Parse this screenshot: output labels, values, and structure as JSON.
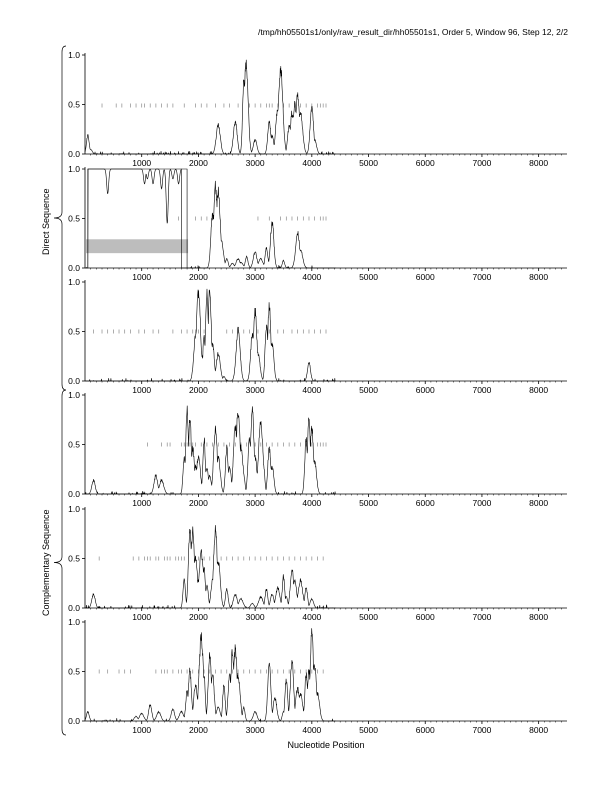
{
  "header": {
    "title": "/tmp/hh05501s1/only/raw_result_dir/hh05501s1, Order 5, Window 96, Step 12, 2/2"
  },
  "groups": {
    "direct_label": "Direct Sequence",
    "complementary_label": "Complementary Sequence"
  },
  "x_axis_label": "Nucleotide Position",
  "colors": {
    "line": "#000000",
    "tick": "#8a8a8a",
    "box": "#bdbdbd"
  },
  "chart_data": [
    {
      "type": "line",
      "group": "direct",
      "xlim": [
        0,
        8500
      ],
      "ylim": [
        0,
        1
      ],
      "x_ticks": [
        "1000",
        "2000",
        "3000",
        "4000",
        "5000",
        "6000",
        "7000",
        "8000"
      ],
      "y_ticks": [
        "0.0",
        "0.5",
        "1.0"
      ],
      "marker_y": 0.49,
      "marker_x": [
        300,
        550,
        650,
        800,
        900,
        1000,
        1050,
        1150,
        1250,
        1350,
        1450,
        1550,
        1750,
        1950,
        2050,
        2150,
        2300,
        2450,
        2550,
        2700,
        2900,
        3000,
        3100,
        3200,
        3250,
        3300,
        3400,
        3500,
        3600,
        3700,
        3800,
        3900,
        4000,
        4100,
        4150,
        4200,
        4250
      ],
      "peaks": [
        [
          50,
          0.2
        ],
        [
          100,
          0.05
        ],
        [
          2350,
          0.32
        ],
        [
          2650,
          0.35
        ],
        [
          2800,
          0.8
        ],
        [
          2840,
          0.97
        ],
        [
          2870,
          0.6
        ],
        [
          3000,
          0.15
        ],
        [
          3250,
          0.35
        ],
        [
          3300,
          0.2
        ],
        [
          3400,
          0.5
        ],
        [
          3450,
          0.93
        ],
        [
          3480,
          0.5
        ],
        [
          3600,
          0.3
        ],
        [
          3650,
          0.45
        ],
        [
          3700,
          0.55
        ],
        [
          3750,
          0.65
        ],
        [
          3800,
          0.45
        ],
        [
          3850,
          0.1
        ],
        [
          4000,
          0.5
        ],
        [
          4050,
          0.15
        ]
      ]
    },
    {
      "type": "line",
      "group": "direct",
      "xlim": [
        0,
        8500
      ],
      "ylim": [
        0,
        1
      ],
      "x_ticks": [
        "1000",
        "2000",
        "3000",
        "4000",
        "5000",
        "6000",
        "7000",
        "8000"
      ],
      "y_ticks": [
        "0.0",
        "0.5",
        "1.0"
      ],
      "marker_y": 0.5,
      "marker_x": [
        1650,
        1950,
        2050,
        2150,
        2250,
        3050,
        3250,
        3450,
        3550,
        3650,
        3750,
        3850,
        3950,
        4050,
        4150,
        4200,
        4250
      ],
      "plateau": {
        "x_range": [
          50,
          1700
        ],
        "value": 1.0,
        "dips": [
          [
            400,
            0.75
          ],
          [
            1050,
            0.85
          ],
          [
            1100,
            0.9
          ],
          [
            1200,
            0.85
          ],
          [
            1350,
            0.8
          ],
          [
            1450,
            0.45
          ],
          [
            1550,
            0.9
          ],
          [
            1650,
            0.85
          ]
        ]
      },
      "box": {
        "x_range": [
          0,
          1800
        ],
        "y_range": [
          0.15,
          0.29
        ]
      },
      "peaks": [
        [
          2250,
          0.6
        ],
        [
          2300,
          0.9
        ],
        [
          2350,
          0.85
        ],
        [
          2400,
          0.3
        ],
        [
          2500,
          0.1
        ],
        [
          2600,
          0.05
        ],
        [
          2700,
          0.1
        ],
        [
          2750,
          0.06
        ],
        [
          2850,
          0.12
        ],
        [
          3000,
          0.17
        ],
        [
          3100,
          0.1
        ],
        [
          3200,
          0.22
        ],
        [
          3300,
          0.5
        ],
        [
          3500,
          0.08
        ],
        [
          3750,
          0.38
        ],
        [
          3800,
          0.2
        ]
      ]
    },
    {
      "type": "line",
      "group": "direct",
      "xlim": [
        0,
        8500
      ],
      "ylim": [
        0,
        1
      ],
      "x_ticks": [
        "1000",
        "2000",
        "3000",
        "4000",
        "5000",
        "6000",
        "7000",
        "8000"
      ],
      "y_ticks": [
        "0.0",
        "0.5",
        "1.0"
      ],
      "marker_y": 0.5,
      "marker_x": [
        150,
        300,
        400,
        500,
        600,
        700,
        800,
        950,
        1050,
        1200,
        1300,
        1550,
        1700,
        1800,
        1900,
        1950,
        2000,
        2100,
        2500,
        2600,
        2700,
        2800,
        2900,
        3050,
        3250,
        3400,
        3500,
        3650,
        3750,
        3850,
        3950,
        4050,
        4150,
        4250
      ],
      "peaks": [
        [
          1950,
          0.5
        ],
        [
          2000,
          0.98
        ],
        [
          2050,
          0.3
        ],
        [
          2100,
          0.5
        ],
        [
          2150,
          0.95
        ],
        [
          2200,
          0.98
        ],
        [
          2250,
          0.4
        ],
        [
          2300,
          0.1
        ],
        [
          2350,
          0.3
        ],
        [
          2450,
          0.05
        ],
        [
          2700,
          0.55
        ],
        [
          2950,
          0.5
        ],
        [
          3000,
          0.75
        ],
        [
          3050,
          0.3
        ],
        [
          3200,
          0.6
        ],
        [
          3250,
          0.82
        ],
        [
          3300,
          0.4
        ],
        [
          3950,
          0.2
        ]
      ]
    },
    {
      "type": "line",
      "group": "complementary",
      "xlim": [
        0,
        8500
      ],
      "ylim": [
        0,
        1
      ],
      "x_ticks": [
        "1000",
        "2000",
        "3000",
        "4000",
        "5000",
        "6000",
        "7000",
        "8000"
      ],
      "y_ticks": [
        "0.0",
        "0.5",
        "1.0"
      ],
      "marker_y": 0.5,
      "marker_x": [
        1100,
        1350,
        1450,
        1500,
        1700,
        1750,
        1800,
        1850,
        1900,
        1950,
        2050,
        2150,
        2250,
        2350,
        2450,
        2550,
        2650,
        2750,
        2850,
        3000,
        3100,
        3200,
        3300,
        3400,
        3500,
        3600,
        3700,
        3800,
        3900,
        4000,
        4100,
        4150,
        4200,
        4250
      ],
      "peaks": [
        [
          150,
          0.15
        ],
        [
          1250,
          0.2
        ],
        [
          1350,
          0.15
        ],
        [
          1750,
          0.4
        ],
        [
          1800,
          0.93
        ],
        [
          1850,
          0.8
        ],
        [
          1900,
          0.5
        ],
        [
          1950,
          0.3
        ],
        [
          2000,
          0.4
        ],
        [
          2100,
          0.6
        ],
        [
          2150,
          0.3
        ],
        [
          2200,
          0.2
        ],
        [
          2300,
          0.7
        ],
        [
          2350,
          0.4
        ],
        [
          2500,
          0.5
        ],
        [
          2550,
          0.3
        ],
        [
          2650,
          0.75
        ],
        [
          2700,
          0.9
        ],
        [
          2750,
          0.5
        ],
        [
          2800,
          0.2
        ],
        [
          2900,
          0.6
        ],
        [
          2950,
          0.9
        ],
        [
          3000,
          0.4
        ],
        [
          3100,
          0.78
        ],
        [
          3150,
          0.3
        ],
        [
          3250,
          0.5
        ],
        [
          3300,
          0.3
        ],
        [
          3900,
          0.6
        ],
        [
          3950,
          0.8
        ],
        [
          4000,
          0.72
        ],
        [
          4050,
          0.35
        ]
      ]
    },
    {
      "type": "line",
      "group": "complementary",
      "xlim": [
        0,
        8500
      ],
      "ylim": [
        0,
        1
      ],
      "x_ticks": [
        "1000",
        "2000",
        "3000",
        "4000",
        "5000",
        "6000",
        "7000",
        "8000"
      ],
      "y_ticks": [
        "0.0",
        "0.5",
        "1.0"
      ],
      "marker_y": 0.5,
      "marker_x": [
        250,
        850,
        950,
        1050,
        1100,
        1150,
        1250,
        1300,
        1400,
        1450,
        1500,
        1600,
        1650,
        1700,
        1750,
        2000,
        2100,
        2200,
        2400,
        2500,
        2600,
        2700,
        2800,
        2900,
        3000,
        3100,
        3200,
        3300,
        3400,
        3500,
        3600,
        3700,
        3800,
        3900,
        4000,
        4100,
        4200
      ],
      "peaks": [
        [
          150,
          0.15
        ],
        [
          1750,
          0.3
        ],
        [
          1850,
          0.82
        ],
        [
          1900,
          0.85
        ],
        [
          1950,
          0.55
        ],
        [
          2000,
          0.3
        ],
        [
          2050,
          0.6
        ],
        [
          2100,
          0.45
        ],
        [
          2150,
          0.25
        ],
        [
          2250,
          0.3
        ],
        [
          2300,
          0.85
        ],
        [
          2350,
          0.5
        ],
        [
          2500,
          0.2
        ],
        [
          2650,
          0.15
        ],
        [
          2750,
          0.1
        ],
        [
          2950,
          0.05
        ],
        [
          3100,
          0.12
        ],
        [
          3200,
          0.2
        ],
        [
          3300,
          0.15
        ],
        [
          3400,
          0.22
        ],
        [
          3500,
          0.35
        ],
        [
          3550,
          0.12
        ],
        [
          3650,
          0.42
        ],
        [
          3700,
          0.3
        ],
        [
          3800,
          0.3
        ],
        [
          3900,
          0.22
        ],
        [
          4000,
          0.1
        ]
      ]
    },
    {
      "type": "line",
      "group": "complementary",
      "xlim": [
        0,
        8500
      ],
      "ylim": [
        0,
        1
      ],
      "x_ticks": [
        "1000",
        "2000",
        "3000",
        "4000",
        "5000",
        "6000",
        "7000",
        "8000"
      ],
      "y_ticks": [
        "0.0",
        "0.5",
        "1.0"
      ],
      "marker_y": 0.5,
      "marker_x": [
        250,
        400,
        600,
        700,
        800,
        1250,
        1350,
        1400,
        1450,
        1550,
        1650,
        1700,
        1800,
        1900,
        2000,
        2100,
        2200,
        2300,
        2400,
        2500,
        2600,
        2700,
        2800,
        2900,
        3000,
        3100,
        3200,
        3300,
        3400,
        3500,
        3600,
        3700,
        3800,
        3900,
        4000,
        4100,
        4200
      ],
      "peaks": [
        [
          50,
          0.1
        ],
        [
          900,
          0.05
        ],
        [
          1000,
          0.08
        ],
        [
          1150,
          0.18
        ],
        [
          1300,
          0.1
        ],
        [
          1550,
          0.13
        ],
        [
          1700,
          0.1
        ],
        [
          1800,
          0.32
        ],
        [
          1850,
          0.55
        ],
        [
          1950,
          0.4
        ],
        [
          2050,
          0.9
        ],
        [
          2100,
          0.5
        ],
        [
          2200,
          0.75
        ],
        [
          2250,
          0.5
        ],
        [
          2350,
          0.15
        ],
        [
          2450,
          0.4
        ],
        [
          2550,
          0.5
        ],
        [
          2600,
          0.75
        ],
        [
          2650,
          0.78
        ],
        [
          2700,
          0.5
        ],
        [
          2800,
          0.15
        ],
        [
          3000,
          0.1
        ],
        [
          3250,
          0.65
        ],
        [
          3350,
          0.25
        ],
        [
          3500,
          0.1
        ],
        [
          3550,
          0.45
        ],
        [
          3650,
          0.65
        ],
        [
          3750,
          0.35
        ],
        [
          3800,
          0.3
        ],
        [
          3900,
          0.5
        ],
        [
          3950,
          0.55
        ],
        [
          4000,
          0.95
        ],
        [
          4050,
          0.6
        ],
        [
          4100,
          0.3
        ]
      ]
    }
  ]
}
